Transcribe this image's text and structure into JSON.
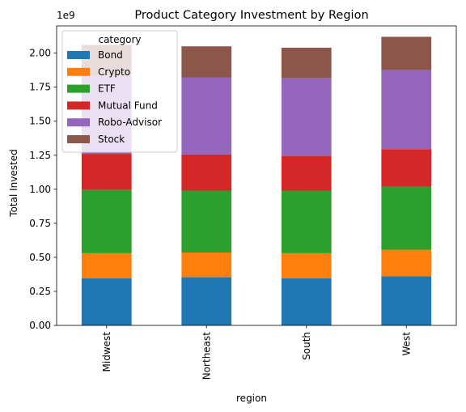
{
  "chart_data": {
    "type": "bar",
    "stacked": true,
    "title": "Product Category Investment by Region",
    "xlabel": "region",
    "ylabel": "Total Invested",
    "y_offset_label": "1e9",
    "ylim": [
      0,
      2.2
    ],
    "y_ticks": [
      "0.00",
      "0.25",
      "0.50",
      "0.75",
      "1.00",
      "1.25",
      "1.50",
      "1.75",
      "2.00"
    ],
    "y_unit_multiplier": 1000000000,
    "categories": [
      "Midwest",
      "Northeast",
      "South",
      "West"
    ],
    "series": [
      {
        "name": "Bond",
        "color": "#1f77b4",
        "values": [
          0.345,
          0.355,
          0.345,
          0.36
        ]
      },
      {
        "name": "Crypto",
        "color": "#ff7f0e",
        "values": [
          0.185,
          0.18,
          0.185,
          0.195
        ]
      },
      {
        "name": "ETF",
        "color": "#2ca02c",
        "values": [
          0.465,
          0.455,
          0.46,
          0.465
        ]
      },
      {
        "name": "Mutual Fund",
        "color": "#d62728",
        "values": [
          0.265,
          0.265,
          0.255,
          0.275
        ]
      },
      {
        "name": "Robo-Advisor",
        "color": "#9467bd",
        "values": [
          0.575,
          0.565,
          0.57,
          0.58
        ]
      },
      {
        "name": "Stock",
        "color": "#8c564b",
        "values": [
          0.225,
          0.23,
          0.225,
          0.245
        ]
      }
    ],
    "legend": {
      "title": "category",
      "placement": "upper-left"
    },
    "grid": false
  }
}
